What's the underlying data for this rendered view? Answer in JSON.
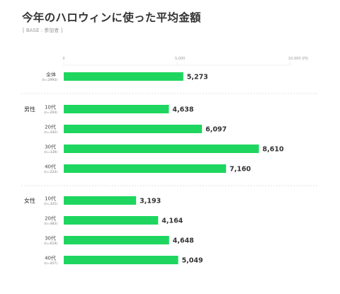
{
  "title": "今年のハロウィンに使った平均金額",
  "subtitle": "[ BASE : 参加者 ]",
  "colors": {
    "bar": "#1ed65f",
    "divider": "#d8d8d8",
    "grid": "#e3e3e3"
  },
  "chart_data": {
    "type": "bar",
    "orientation": "horizontal",
    "xlim": [
      0,
      10000
    ],
    "ticks": [
      "0",
      "5,000",
      "10,000 (円)"
    ],
    "tick_values": [
      0,
      5000,
      10000
    ],
    "groups": [
      {
        "label": "",
        "rows": [
          {
            "category": "全体",
            "n": "(n=2993)",
            "value": 5273,
            "value_label": "5,273"
          }
        ]
      },
      {
        "label": "男性",
        "rows": [
          {
            "category": "10代",
            "n": "(n=204)",
            "value": 4638,
            "value_label": "4,638"
          },
          {
            "category": "20代",
            "n": "(n=342)",
            "value": 6097,
            "value_label": "6,097"
          },
          {
            "category": "30代",
            "n": "(n=339)",
            "value": 8610,
            "value_label": "8,610"
          },
          {
            "category": "40代",
            "n": "(n=224)",
            "value": 7160,
            "value_label": "7,160"
          }
        ]
      },
      {
        "label": "女性",
        "rows": [
          {
            "category": "10代",
            "n": "(n=325)",
            "value": 3193,
            "value_label": "3,193"
          },
          {
            "category": "20代",
            "n": "(n=483)",
            "value": 4164,
            "value_label": "4,164"
          },
          {
            "category": "30代",
            "n": "(n=619)",
            "value": 4648,
            "value_label": "4,648"
          },
          {
            "category": "40代",
            "n": "(n=457)",
            "value": 5049,
            "value_label": "5,049"
          }
        ]
      }
    ]
  }
}
